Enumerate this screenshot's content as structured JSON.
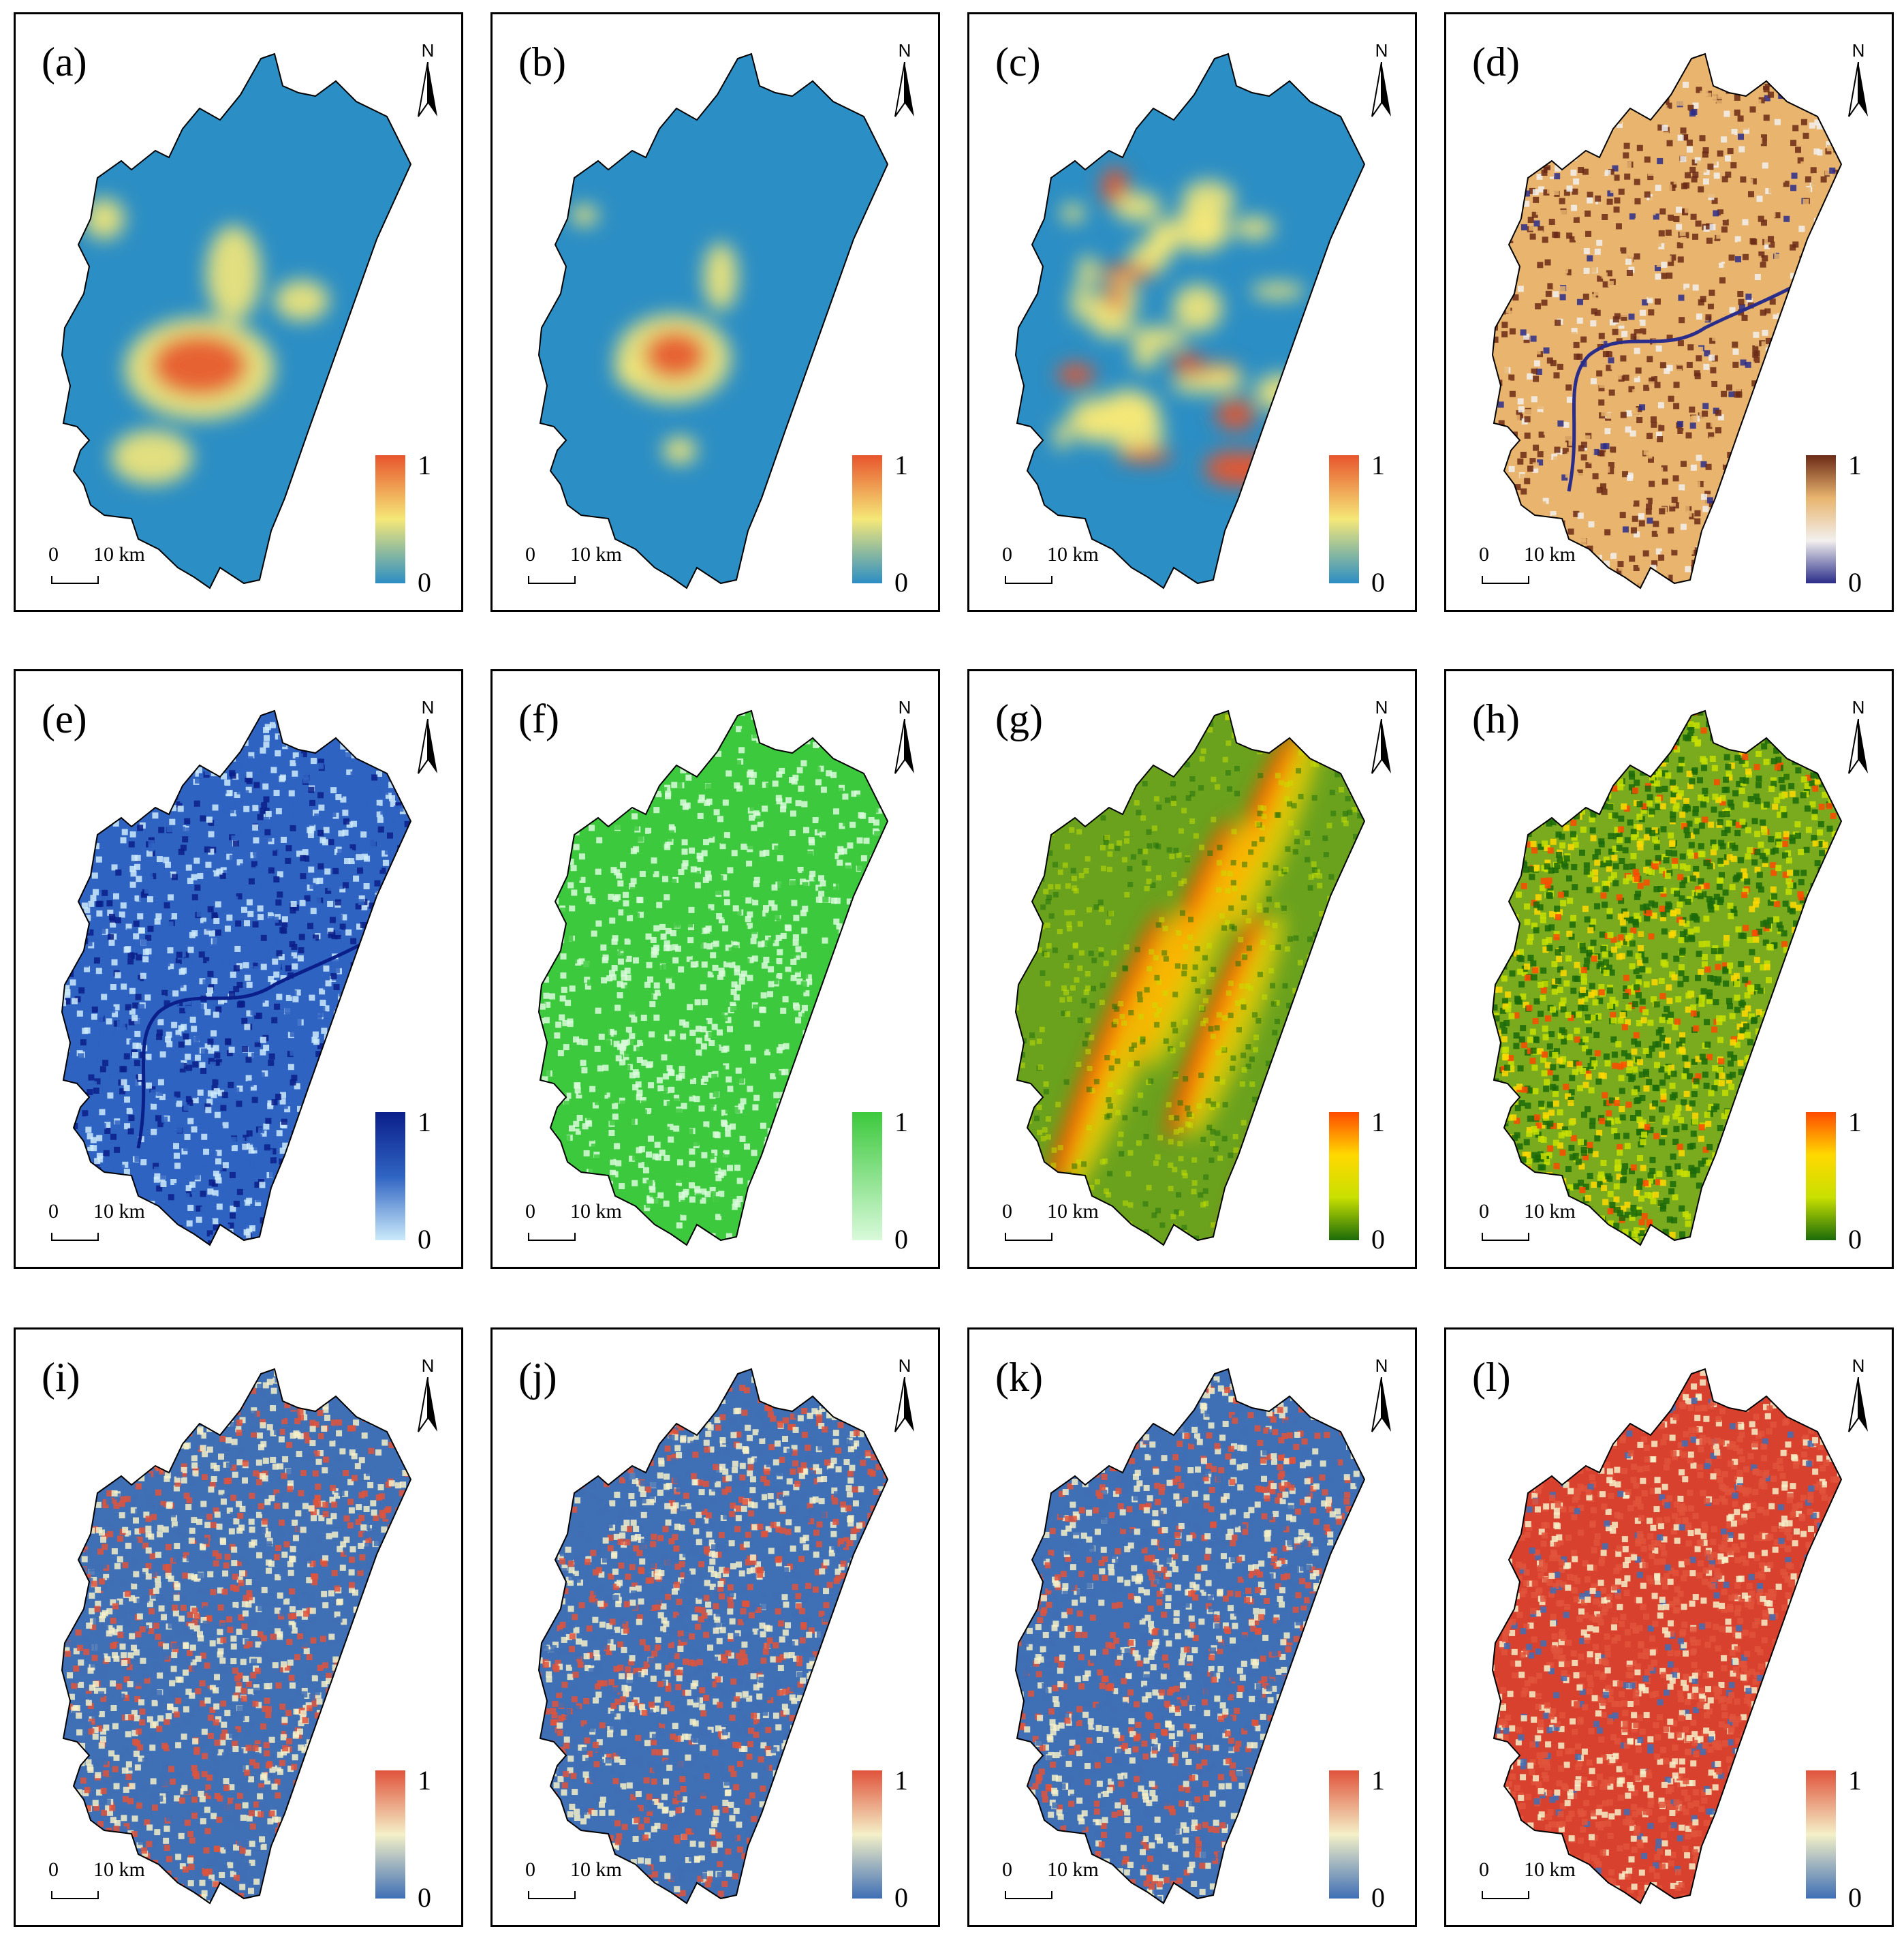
{
  "north_letter": "N",
  "scale": {
    "zero": "0",
    "distance": "10 km"
  },
  "legend": {
    "max": "1",
    "min": "0"
  },
  "panels": [
    {
      "label": "(a)",
      "palette": "spectral-blue-yellow-red",
      "base": "#2b8ec4",
      "colors": [
        "#2b8ec4",
        "#f5e878",
        "#e8552d"
      ],
      "pattern": "urban-core"
    },
    {
      "label": "(b)",
      "palette": "spectral-blue-yellow-red",
      "base": "#2b8ec4",
      "colors": [
        "#2b8ec4",
        "#f5e878",
        "#e8552d"
      ],
      "pattern": "kernel-blob"
    },
    {
      "label": "(c)",
      "palette": "spectral-blue-yellow-red",
      "base": "#2b8ec4",
      "colors": [
        "#2b8ec4",
        "#f5e878",
        "#e8552d"
      ],
      "pattern": "scattered-urban"
    },
    {
      "label": "(d)",
      "palette": "navy-white-orange-brown",
      "base": "#e8b46e",
      "colors": [
        "#2b2d8a",
        "#f2f0ee",
        "#e8b46e",
        "#6b2a16"
      ],
      "pattern": "noise-river"
    },
    {
      "label": "(e)",
      "palette": "light-blue-navy",
      "base": "#2f63c2",
      "colors": [
        "#cbeafa",
        "#2f63c2",
        "#0b1f8a"
      ],
      "pattern": "noise-blue"
    },
    {
      "label": "(f)",
      "palette": "light-green-green",
      "base": "#3dc93d",
      "colors": [
        "#d9fadb",
        "#3dc93d"
      ],
      "pattern": "noise-green"
    },
    {
      "label": "(g)",
      "palette": "darkgreen-yellow-red",
      "base": "#6aa21e",
      "colors": [
        "#1c6b0a",
        "#c8e000",
        "#ffd900",
        "#ff4a00"
      ],
      "pattern": "ridges"
    },
    {
      "label": "(h)",
      "palette": "darkgreen-yellow-red",
      "base": "#7aaa1e",
      "colors": [
        "#1c6b0a",
        "#c8e000",
        "#ffd900",
        "#ff4a00"
      ],
      "pattern": "noise-mixed"
    },
    {
      "label": "(i)",
      "palette": "blue-cream-red",
      "base": "#3f6fb5",
      "colors": [
        "#3f6fb5",
        "#f4f0c8",
        "#e0533b"
      ],
      "pattern": "patchy"
    },
    {
      "label": "(j)",
      "palette": "blue-cream-red",
      "base": "#3f6fb5",
      "colors": [
        "#3f6fb5",
        "#f4f0c8",
        "#e0533b"
      ],
      "pattern": "patchy"
    },
    {
      "label": "(k)",
      "palette": "blue-cream-red",
      "base": "#3f6fb5",
      "colors": [
        "#3f6fb5",
        "#f4f0c8",
        "#e0533b"
      ],
      "pattern": "patchy"
    },
    {
      "label": "(l)",
      "palette": "blue-cream-red",
      "base": "#d9412f",
      "colors": [
        "#3f6fb5",
        "#f4f0c8",
        "#e0533b"
      ],
      "pattern": "patchy-red"
    }
  ]
}
